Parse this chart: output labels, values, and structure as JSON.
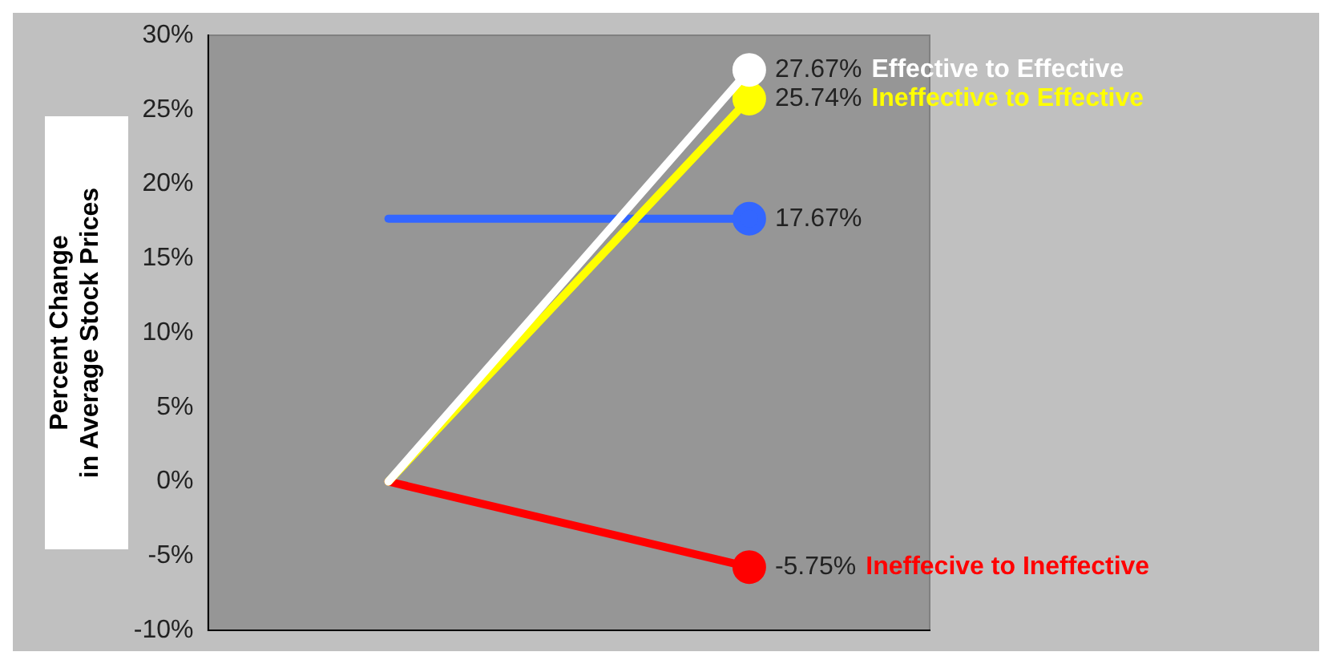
{
  "chart_data": {
    "type": "line",
    "ylabel": "Percent Change\nin Average Stock Prices",
    "categories": [
      null,
      null
    ],
    "series": [
      {
        "name": "Effective to Effective",
        "color": "#ffffff",
        "values": [
          0,
          27.67
        ],
        "value_labels": [
          null,
          "27.67%"
        ]
      },
      {
        "name": "Ineffective to Effective",
        "color": "#ffff00",
        "values": [
          0,
          25.74
        ],
        "value_labels": [
          null,
          "25.74%"
        ]
      },
      {
        "color": "#3366ff",
        "values": [
          17.67,
          17.67
        ],
        "value_labels": [
          null,
          "17.67%"
        ]
      },
      {
        "name": "Ineffecive to Ineffective",
        "color": "#ff0000",
        "values": [
          0,
          -5.75
        ],
        "value_labels": [
          null,
          "-5.75%"
        ]
      }
    ],
    "ylim": [
      -10,
      30
    ],
    "yticks": [
      {
        "value": -10,
        "label": "-10%"
      },
      {
        "value": -5,
        "label": "-5%"
      },
      {
        "value": 0,
        "label": "0%"
      },
      {
        "value": 5,
        "label": "5%"
      },
      {
        "value": 10,
        "label": "10%"
      },
      {
        "value": 15,
        "label": "15%"
      },
      {
        "value": 20,
        "label": "20%"
      },
      {
        "value": 25,
        "label": "25%"
      },
      {
        "value": 30,
        "label": "30%"
      }
    ],
    "tick_labels": "y",
    "grid": false,
    "legend": false,
    "marker": "circle",
    "line_style": "solid"
  }
}
